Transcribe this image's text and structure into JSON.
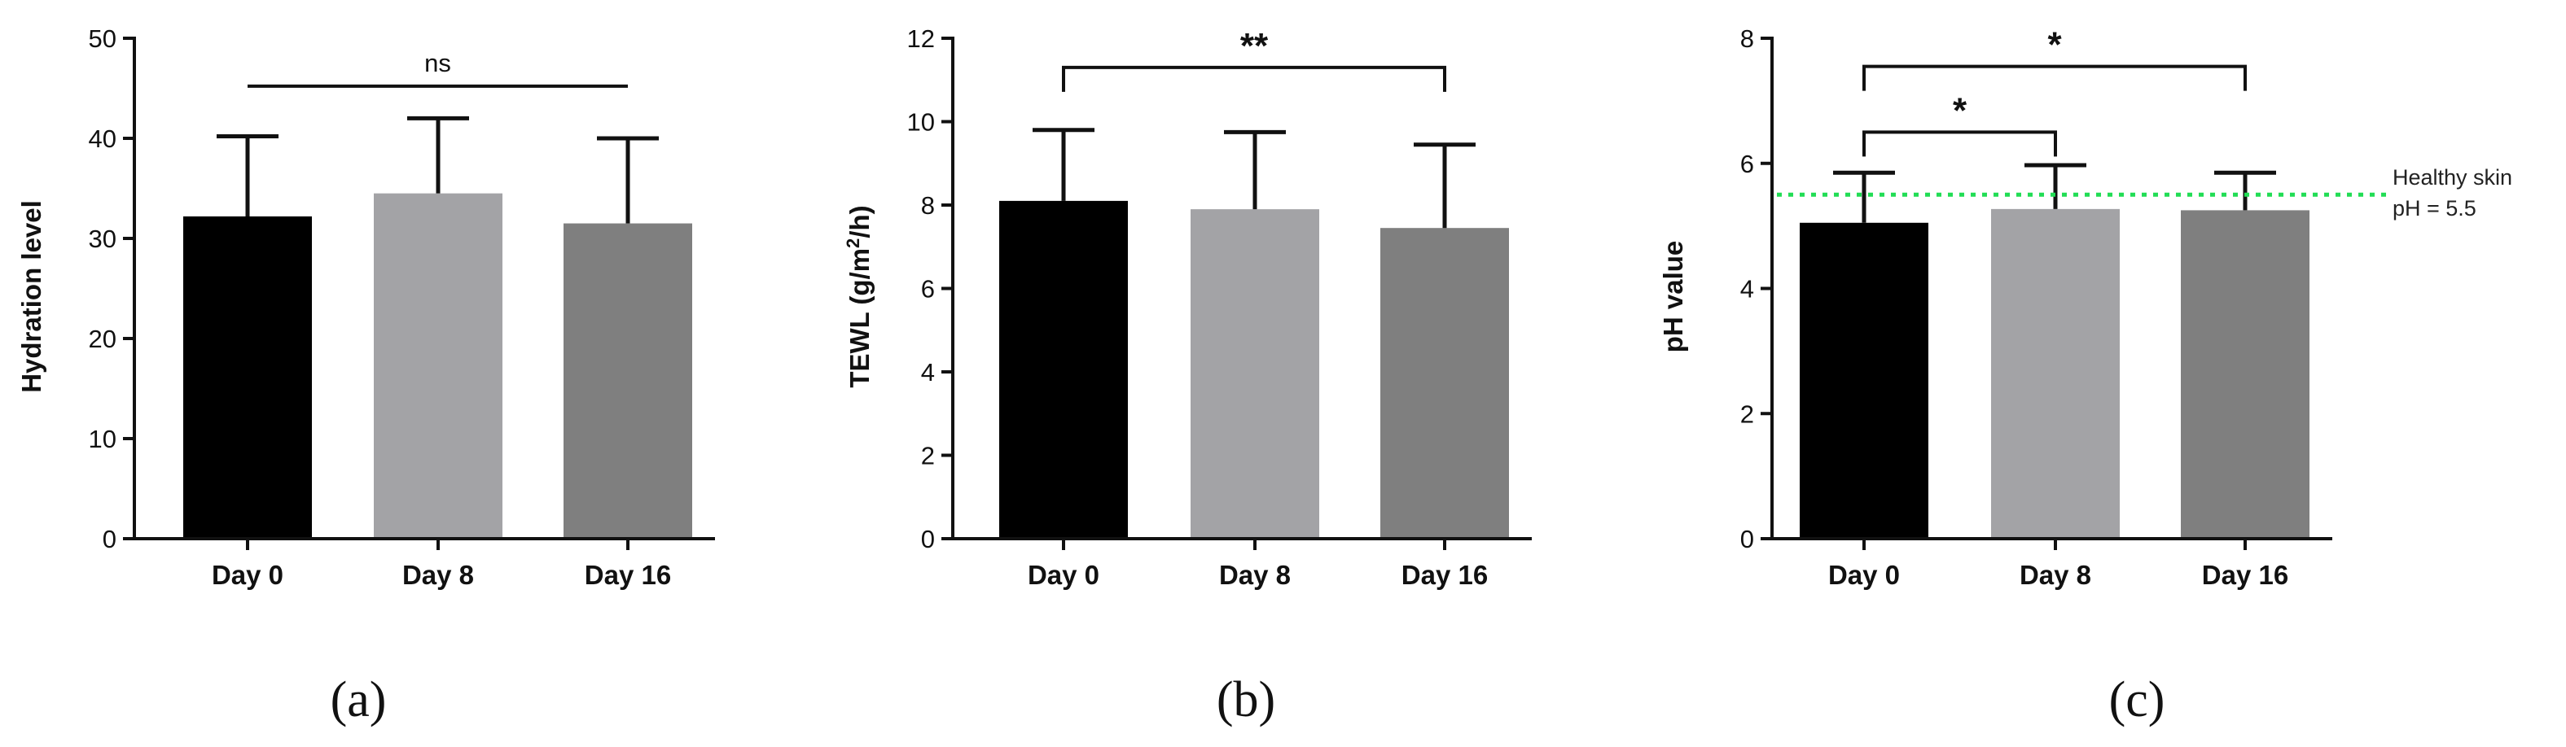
{
  "chart_data": [
    {
      "type": "bar",
      "panel_label": "(a)",
      "categories": [
        "Day 0",
        "Day 8",
        "Day 16"
      ],
      "values": [
        32.2,
        34.5,
        31.5
      ],
      "errors": [
        8.0,
        7.5,
        8.5
      ],
      "colors": [
        "#000000",
        "#a3a3a6",
        "#7f7f7f"
      ],
      "ylabel": "Hydration level",
      "ylim": [
        0,
        50
      ],
      "yticks": [
        0,
        10,
        20,
        30,
        40,
        50
      ],
      "ytick_labels": [
        "0",
        "10",
        "20",
        "30",
        "40",
        "50"
      ],
      "significance": [
        {
          "from": 0,
          "to": 2,
          "label": "ns",
          "level": 47,
          "style": "line"
        }
      ]
    },
    {
      "type": "bar",
      "panel_label": "(b)",
      "categories": [
        "Day 0",
        "Day 8",
        "Day 16"
      ],
      "values": [
        8.1,
        7.9,
        7.45
      ],
      "errors": [
        1.7,
        1.85,
        2.0
      ],
      "colors": [
        "#000000",
        "#a3a3a6",
        "#7f7f7f"
      ],
      "ylabel": "TEWL (g/m",
      "ylabel_sup": "2",
      "ylabel_end": "/h)",
      "ylim": [
        0,
        12
      ],
      "yticks": [
        0,
        2,
        4,
        6,
        8,
        10,
        12
      ],
      "ytick_labels": [
        "0",
        "2",
        "4",
        "6",
        "8",
        "10",
        "12"
      ],
      "significance": [
        {
          "from": 0,
          "to": 2,
          "label": "**",
          "level": 11.3,
          "style": "bracket"
        }
      ]
    },
    {
      "type": "bar",
      "panel_label": "(c)",
      "categories": [
        "Day 0",
        "Day 8",
        "Day 16"
      ],
      "values": [
        5.05,
        5.27,
        5.25
      ],
      "errors": [
        0.8,
        0.7,
        0.6
      ],
      "colors": [
        "#000000",
        "#a3a3a6",
        "#7f7f7f"
      ],
      "ylabel": "pH value",
      "ylim": [
        0,
        8
      ],
      "yticks": [
        0,
        2,
        4,
        6,
        8
      ],
      "ytick_labels": [
        "0",
        "2",
        "4",
        "6",
        "8"
      ],
      "reference_line": {
        "value": 5.5,
        "color": "#22dd55",
        "label_line1": "Healthy skin",
        "label_line2": "pH = 5.5"
      },
      "significance": [
        {
          "from": 0,
          "to": 1,
          "label": "*",
          "level": 6.5,
          "style": "bracket"
        },
        {
          "from": 0,
          "to": 2,
          "label": "*",
          "level": 7.55,
          "style": "bracket"
        }
      ]
    }
  ]
}
